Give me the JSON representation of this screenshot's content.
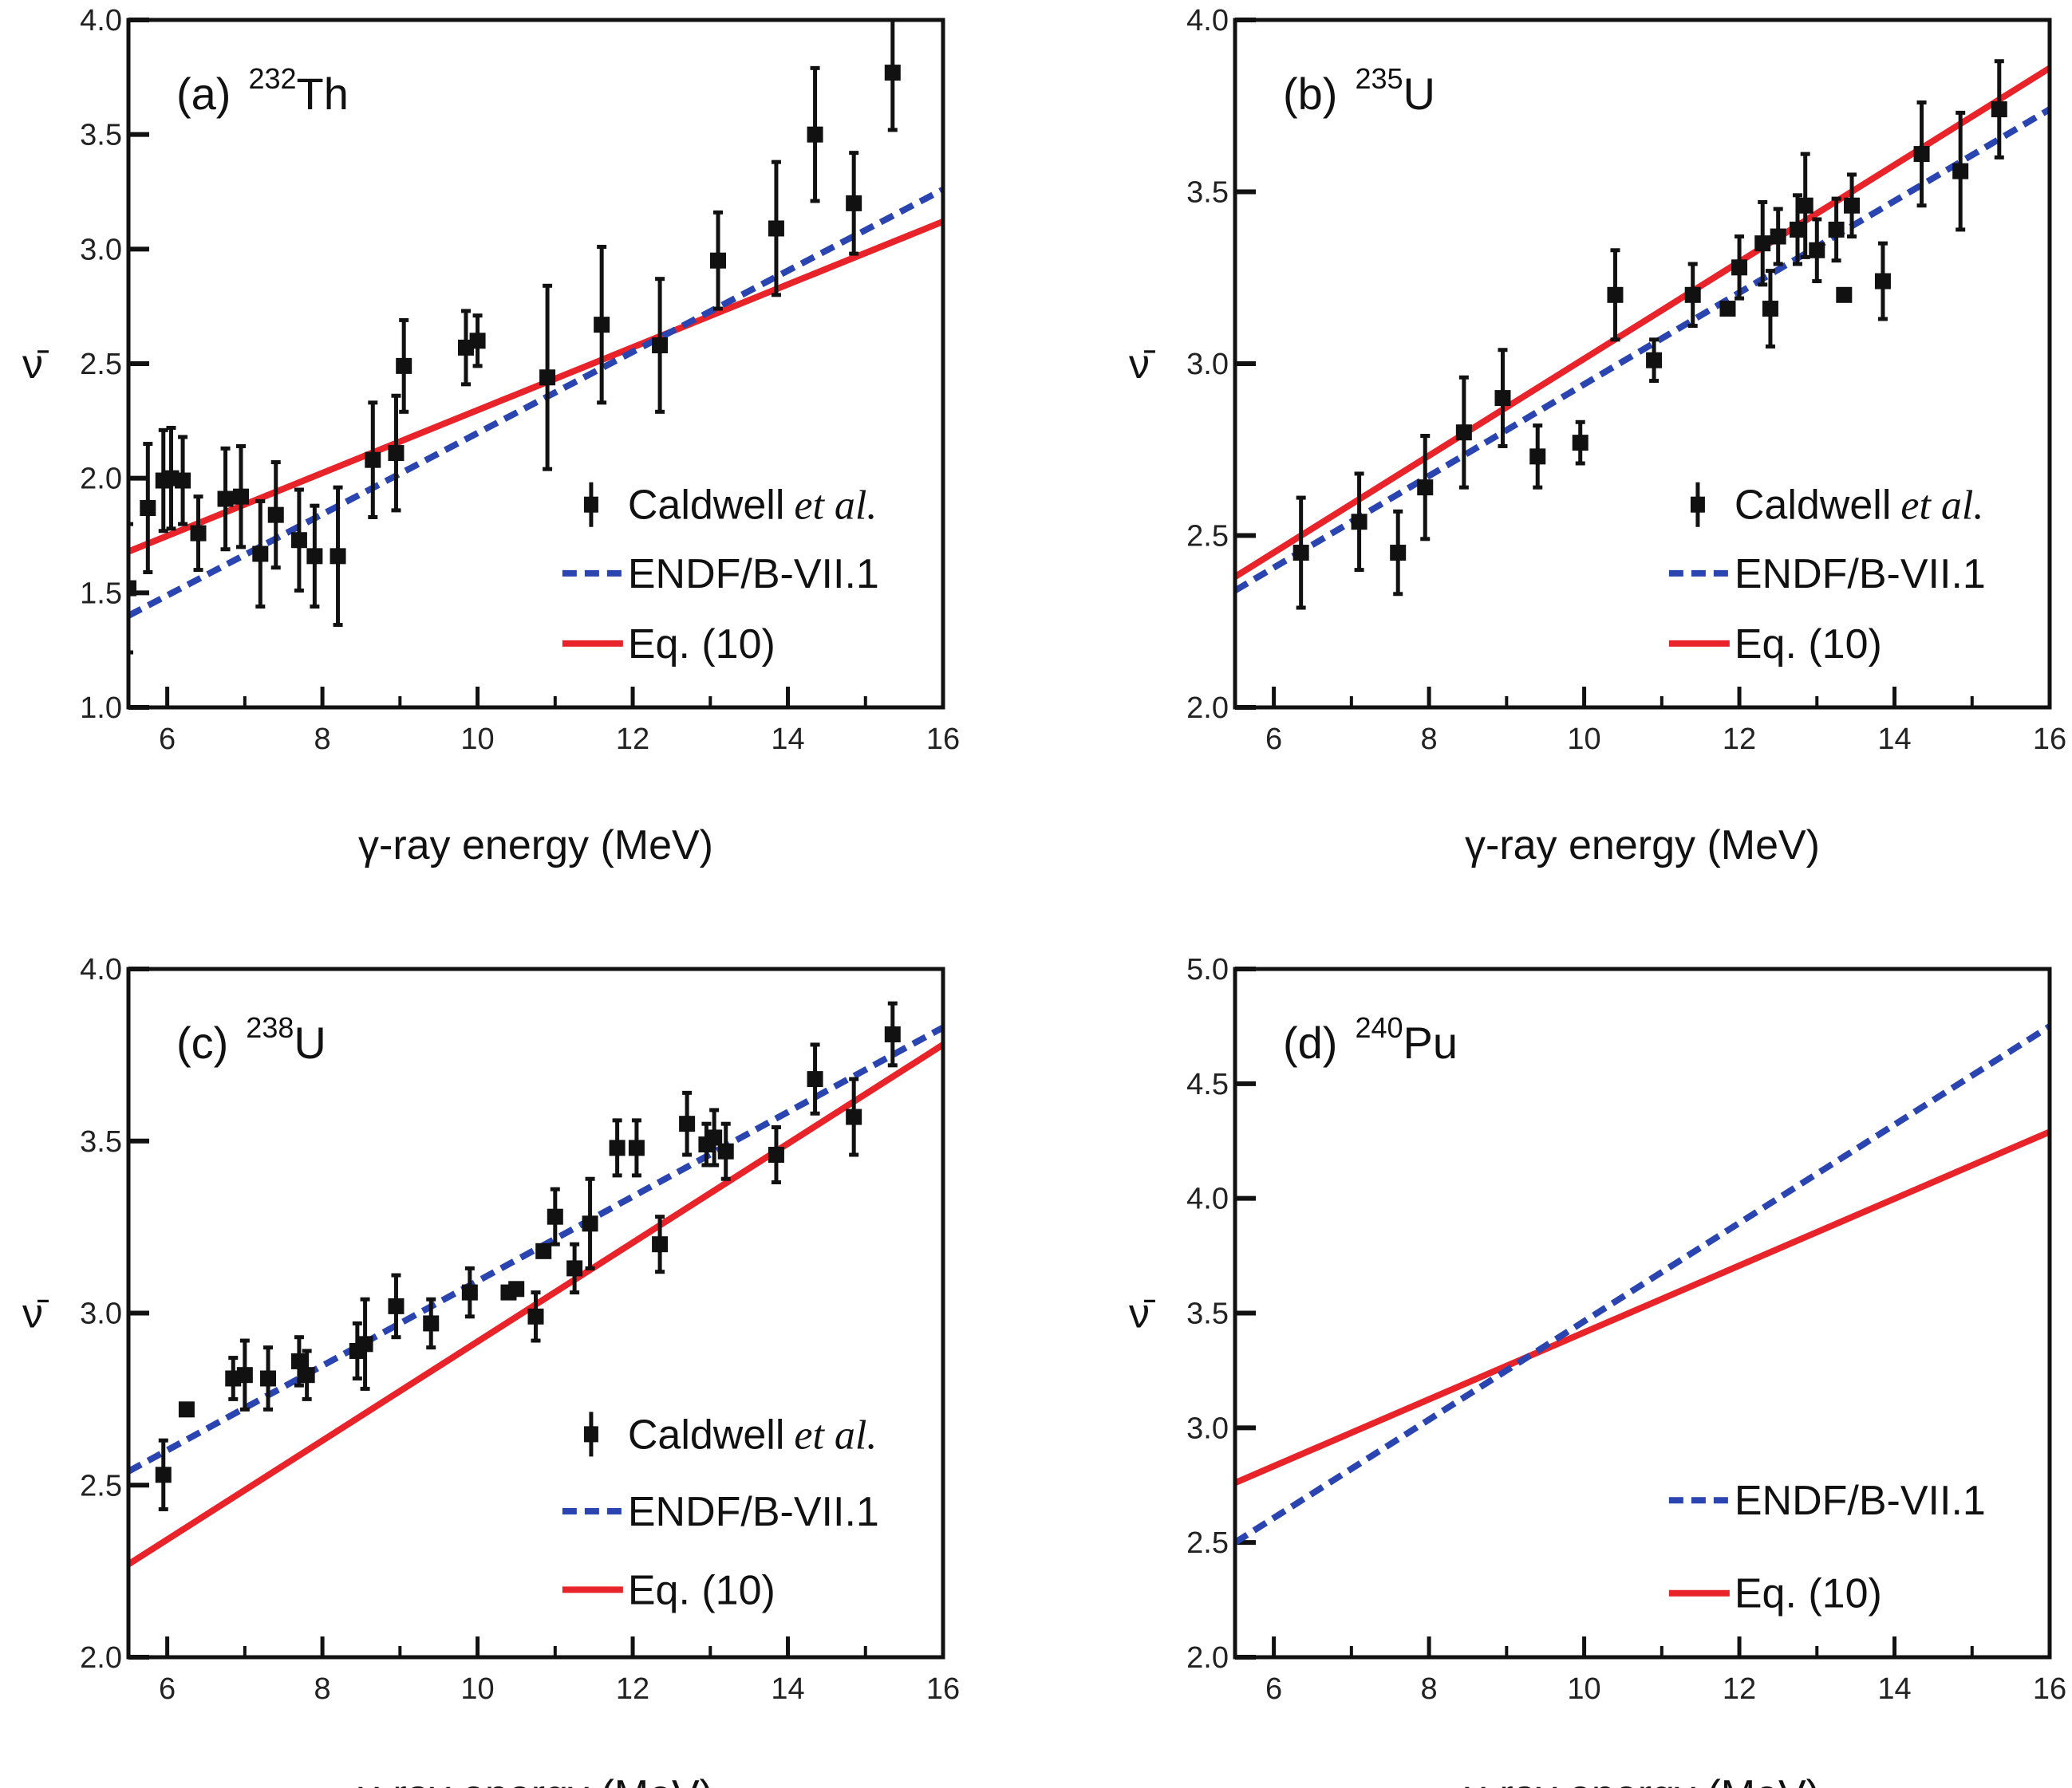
{
  "colors": {
    "data": "#111111",
    "endf": "#2a44b0",
    "eq10": "#e8242a"
  },
  "chart_data": [
    {
      "type": "scatter",
      "panel_label": "(a)",
      "mass_number": "232",
      "element": "Th",
      "xlabel": "γ-ray energy (MeV)",
      "ylabel": "ν̄",
      "xlim": [
        5.5,
        16
      ],
      "ylim": [
        1.0,
        4.0
      ],
      "xticks": [
        6,
        8,
        10,
        12,
        14,
        16
      ],
      "yticks": [
        "1.0",
        "1.5",
        "2.0",
        "2.5",
        "3.0",
        "3.5",
        "4.0"
      ],
      "legend": [
        "Caldwell",
        "et al.",
        "ENDF/B-VII.1",
        "Eq. (10)"
      ],
      "data": [
        [
          5.5,
          1.52,
          0.28
        ],
        [
          5.75,
          1.87,
          0.28
        ],
        [
          5.95,
          1.99,
          0.22
        ],
        [
          6.05,
          2.0,
          0.22
        ],
        [
          6.2,
          1.99,
          0.19
        ],
        [
          6.4,
          1.76,
          0.16
        ],
        [
          6.75,
          1.91,
          0.22
        ],
        [
          6.95,
          1.92,
          0.22
        ],
        [
          7.2,
          1.67,
          0.23
        ],
        [
          7.4,
          1.84,
          0.23
        ],
        [
          7.7,
          1.73,
          0.22
        ],
        [
          7.9,
          1.66,
          0.22
        ],
        [
          8.2,
          1.66,
          0.3
        ],
        [
          8.65,
          2.08,
          0.25
        ],
        [
          8.95,
          2.11,
          0.25
        ],
        [
          9.05,
          2.49,
          0.2
        ],
        [
          9.85,
          2.57,
          0.16
        ],
        [
          10.0,
          2.6,
          0.11
        ],
        [
          10.9,
          2.44,
          0.4
        ],
        [
          11.6,
          2.67,
          0.34
        ],
        [
          12.35,
          2.58,
          0.29
        ],
        [
          13.1,
          2.95,
          0.21
        ],
        [
          13.85,
          3.09,
          0.29
        ],
        [
          14.35,
          3.5,
          0.29
        ],
        [
          14.85,
          3.2,
          0.22
        ],
        [
          15.35,
          3.77,
          0.25
        ]
      ],
      "endf": [
        [
          5.5,
          1.4
        ],
        [
          16,
          3.26
        ]
      ],
      "eq10": [
        [
          5.5,
          1.68
        ],
        [
          16,
          3.12
        ]
      ]
    },
    {
      "type": "scatter",
      "panel_label": "(b)",
      "mass_number": "235",
      "element": "U",
      "xlabel": "γ-ray energy (MeV)",
      "ylabel": "ν̄",
      "xlim": [
        5.5,
        16
      ],
      "ylim": [
        2.0,
        4.0
      ],
      "xticks": [
        6,
        8,
        10,
        12,
        14,
        16
      ],
      "yticks": [
        "2.0",
        "2.5",
        "3.0",
        "3.5",
        "4.0"
      ],
      "legend": [
        "Caldwell",
        "et al.",
        "ENDF/B-VII.1",
        "Eq. (10)"
      ],
      "data": [
        [
          6.35,
          2.45,
          0.16
        ],
        [
          7.1,
          2.54,
          0.14
        ],
        [
          7.6,
          2.45,
          0.12
        ],
        [
          7.95,
          2.64,
          0.15
        ],
        [
          8.45,
          2.8,
          0.16
        ],
        [
          8.95,
          2.9,
          0.14
        ],
        [
          9.4,
          2.73,
          0.09
        ],
        [
          9.95,
          2.77,
          0.06
        ],
        [
          10.4,
          3.2,
          0.13
        ],
        [
          10.9,
          3.01,
          0.06
        ],
        [
          11.4,
          3.2,
          0.09
        ],
        [
          11.85,
          3.16,
          0
        ],
        [
          12.0,
          3.28,
          0.09
        ],
        [
          12.3,
          3.35,
          0.12
        ],
        [
          12.4,
          3.16,
          0.11
        ],
        [
          12.5,
          3.37,
          0.08
        ],
        [
          12.75,
          3.39,
          0.1
        ],
        [
          12.85,
          3.46,
          0.15
        ],
        [
          13.0,
          3.33,
          0.09
        ],
        [
          13.25,
          3.39,
          0.09
        ],
        [
          13.35,
          3.2,
          0
        ],
        [
          13.45,
          3.46,
          0.09
        ],
        [
          13.85,
          3.24,
          0.11
        ],
        [
          14.35,
          3.61,
          0.15
        ],
        [
          14.85,
          3.56,
          0.17
        ],
        [
          15.35,
          3.74,
          0.14
        ]
      ],
      "endf": [
        [
          5.5,
          2.34
        ],
        [
          16,
          3.74
        ]
      ],
      "eq10": [
        [
          5.5,
          2.38
        ],
        [
          16,
          3.86
        ]
      ]
    },
    {
      "type": "scatter",
      "panel_label": "(c)",
      "mass_number": "238",
      "element": "U",
      "xlabel": "γ-ray energy (MeV)",
      "ylabel": "ν̄",
      "xlim": [
        5.5,
        16
      ],
      "ylim": [
        2.0,
        4.0
      ],
      "xticks": [
        6,
        8,
        10,
        12,
        14,
        16
      ],
      "yticks": [
        "2.0",
        "2.5",
        "3.0",
        "3.5",
        "4.0"
      ],
      "legend": [
        "Caldwell",
        "et al.",
        "ENDF/B-VII.1",
        "Eq. (10)"
      ],
      "data": [
        [
          5.95,
          2.53,
          0.1
        ],
        [
          6.25,
          2.72,
          0
        ],
        [
          6.85,
          2.81,
          0.06
        ],
        [
          7.0,
          2.82,
          0.1
        ],
        [
          7.3,
          2.81,
          0.09
        ],
        [
          7.7,
          2.86,
          0.07
        ],
        [
          7.8,
          2.82,
          0.07
        ],
        [
          8.45,
          2.89,
          0.08
        ],
        [
          8.55,
          2.91,
          0.13
        ],
        [
          8.95,
          3.02,
          0.09
        ],
        [
          9.4,
          2.97,
          0.07
        ],
        [
          9.9,
          3.06,
          0.07
        ],
        [
          10.4,
          3.06,
          0
        ],
        [
          10.5,
          3.07,
          0
        ],
        [
          10.75,
          2.99,
          0.07
        ],
        [
          10.85,
          3.18,
          0
        ],
        [
          11.0,
          3.28,
          0.08
        ],
        [
          11.25,
          3.13,
          0.07
        ],
        [
          11.45,
          3.26,
          0.13
        ],
        [
          11.8,
          3.48,
          0.08
        ],
        [
          12.05,
          3.48,
          0.08
        ],
        [
          12.35,
          3.2,
          0.08
        ],
        [
          12.7,
          3.55,
          0.09
        ],
        [
          12.95,
          3.49,
          0.06
        ],
        [
          13.05,
          3.51,
          0.08
        ],
        [
          13.2,
          3.47,
          0.08
        ],
        [
          13.85,
          3.46,
          0.08
        ],
        [
          14.35,
          3.68,
          0.1
        ],
        [
          14.85,
          3.57,
          0.11
        ],
        [
          15.35,
          3.81,
          0.09
        ]
      ],
      "endf": [
        [
          5.5,
          2.54
        ],
        [
          16,
          3.83
        ]
      ],
      "eq10": [
        [
          5.5,
          2.27
        ],
        [
          16,
          3.78
        ]
      ]
    },
    {
      "type": "line",
      "panel_label": "(d)",
      "mass_number": "240",
      "element": "Pu",
      "xlabel": "γ-ray energy (MeV)",
      "ylabel": "ν̄",
      "xlim": [
        5.5,
        16
      ],
      "ylim": [
        2.0,
        5.0
      ],
      "xticks": [
        6,
        8,
        10,
        12,
        14,
        16
      ],
      "yticks": [
        "2.0",
        "2.5",
        "3.0",
        "3.5",
        "4.0",
        "4.5",
        "5.0"
      ],
      "legend": [
        "ENDF/B-VII.1",
        "Eq. (10)"
      ],
      "data": [],
      "endf": [
        [
          5.5,
          2.5
        ],
        [
          16,
          4.75
        ]
      ],
      "eq10": [
        [
          5.5,
          2.76
        ],
        [
          16,
          4.29
        ]
      ]
    }
  ]
}
